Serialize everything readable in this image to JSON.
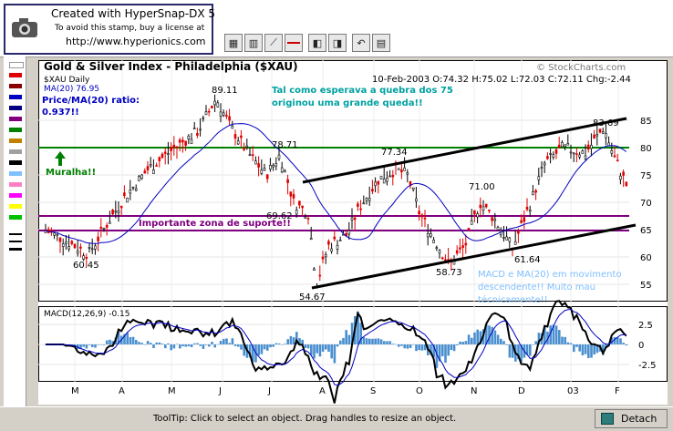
{
  "stamp": {
    "line1": "Created with HyperSnap-DX 5",
    "line2": "To avoid this stamp, buy a license at",
    "line3": "http://www.hyperionics.com"
  },
  "chart": {
    "title": "Gold & Silver Index - Philadelphia ($XAU)",
    "watermark": "© StockCharts.com",
    "symbol_line": "$XAU Daily",
    "ma_line": "MA(20) 76.95",
    "ratio_label": "Price/MA(20) ratio:",
    "ratio_value": "0.937!!",
    "quote": {
      "date": "10-Feb-2003",
      "open_label": "O:",
      "open": "74.32",
      "high_label": "H:",
      "high": "75.02",
      "low_label": "L:",
      "low": "72.03",
      "close_label": "C:",
      "close": "72.11",
      "chg_label": "Chg:",
      "chg": "-2.44"
    },
    "annotations": {
      "top_note_1": "Tal como esperava a quebra dos 75",
      "top_note_2": "originou uma grande queda!!",
      "muralha": "Muralha!!",
      "support_zone": "Importante zona de suporte!!",
      "macd_note_1": "MACD e MA(20) em movimento",
      "macd_note_2": "descendente!! Muito mau",
      "macd_note_3": "técnicamente!!"
    },
    "point_labels": [
      "89.11",
      "78.71",
      "77.34",
      "69.62",
      "71.00",
      "83.69",
      "60.45",
      "58.73",
      "61.64",
      "54.67"
    ],
    "price_ticks": [
      "85",
      "80",
      "75",
      "70",
      "65",
      "60",
      "55"
    ],
    "macd_label": "MACD(12,26,9) -0.15",
    "macd_ticks": [
      "2.5",
      "0",
      "-2.5"
    ],
    "x_ticks": [
      "M",
      "A",
      "M",
      "J",
      "J",
      "A",
      "S",
      "O",
      "N",
      "D",
      "03",
      "F"
    ]
  },
  "status": {
    "tooltip": "ToolTip: Click to select an object. Drag handles to resize an object.",
    "detach": "Detach"
  },
  "colors": {
    "green_line": "#008000",
    "purple_line": "#800080",
    "channel": "#000000",
    "annotation_teal": "#00a0a0",
    "ratio_blue": "#0000c0",
    "macd_note": "#80c0ff"
  }
}
